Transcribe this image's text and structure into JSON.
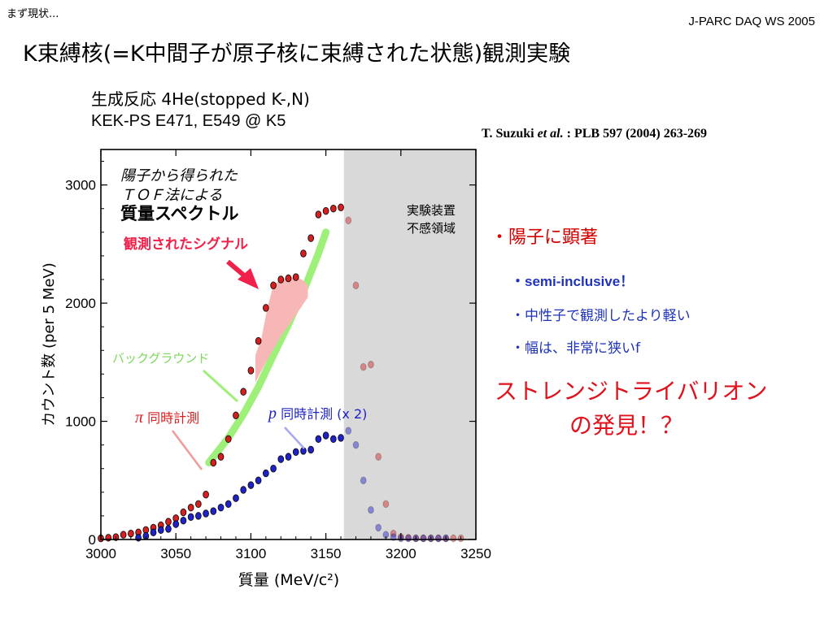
{
  "header": {
    "corner_label": "まず現状...",
    "event_label": "J-PARC DAQ WS 2005"
  },
  "slide": {
    "title": "K束縛核(=K中間子が原子核に束縛された状態)観測実験",
    "reaction": "生成反応  4He(stopped K-,N)",
    "experiment": "KEK-PS E471, E549 @ K5",
    "citation_author": "T. Suzuki ",
    "citation_etal": "et al.",
    "citation_ref": " : PLB 597 (2004) 263-269"
  },
  "bullets": {
    "b1": "・陽子に顕著",
    "b2": "・semi-inclusive！",
    "b3": "・中性子で観測したより軽い",
    "b4": "・幅は、非常に狭いf"
  },
  "conclusion": {
    "line1": "ストレンジトライバリオン",
    "line2": "の発見！？"
  },
  "colors": {
    "pi_series": "#d42020",
    "p_series": "#1f22c8",
    "background_band": "#9ef07a",
    "signal_fill": "#f7b7b7",
    "insensitive_region": "#d9d9d9",
    "arrow": "#f0204a"
  },
  "chart_data": {
    "type": "scatter",
    "xlabel": "質量 (MeV/c²)",
    "ylabel": "カウント数 (per 5 MeV)",
    "xlim": [
      3000,
      3250
    ],
    "ylim": [
      0,
      3300
    ],
    "xticks": [
      3000,
      3050,
      3100,
      3150,
      3200,
      3250
    ],
    "yticks": [
      0,
      1000,
      2000,
      3000
    ],
    "inner_title": [
      "陽子から得られた",
      "ＴＯＦ法による",
      "質量スペクトル"
    ],
    "insensitive_region": {
      "label": [
        "実験装置",
        "不感領域"
      ],
      "x_range": [
        3162,
        3250
      ]
    },
    "annotations": {
      "signal": "観測されたシグナル",
      "background": "バックグラウンド",
      "pi_label_symbol": "π",
      "pi_label_text": " 同時計測",
      "p_label_symbol": "p",
      "p_label_text": " 同時計測 (x 2)"
    },
    "series": [
      {
        "name": "π 同時計測",
        "x": [
          3000,
          3005,
          3010,
          3015,
          3020,
          3025,
          3030,
          3035,
          3040,
          3045,
          3050,
          3055,
          3060,
          3065,
          3070,
          3075,
          3080,
          3085,
          3090,
          3095,
          3100,
          3105,
          3110,
          3115,
          3120,
          3125,
          3130,
          3135,
          3140,
          3145,
          3150,
          3155,
          3160,
          3165,
          3170,
          3175,
          3180,
          3185,
          3190,
          3195,
          3200,
          3205,
          3210,
          3215,
          3220,
          3225,
          3230,
          3235,
          3240
        ],
        "y": [
          10,
          15,
          20,
          40,
          50,
          60,
          80,
          100,
          120,
          150,
          180,
          230,
          270,
          300,
          380,
          650,
          700,
          850,
          1050,
          1250,
          1430,
          1680,
          1960,
          2150,
          2200,
          2210,
          2220,
          2420,
          2550,
          2750,
          2780,
          2800,
          2810,
          2700,
          2150,
          1460,
          1480,
          700,
          300,
          50,
          20,
          15,
          10,
          10,
          10,
          10,
          10,
          10,
          10
        ]
      },
      {
        "name": "p 同時計測 (x 2)",
        "x": [
          3025,
          3030,
          3035,
          3040,
          3045,
          3050,
          3055,
          3060,
          3065,
          3070,
          3075,
          3080,
          3085,
          3090,
          3095,
          3100,
          3105,
          3110,
          3115,
          3120,
          3125,
          3130,
          3135,
          3140,
          3145,
          3150,
          3155,
          3160,
          3165,
          3170,
          3175,
          3180,
          3185,
          3190,
          3195,
          3200,
          3205,
          3210,
          3215,
          3220,
          3225,
          3230
        ],
        "y": [
          15,
          30,
          60,
          80,
          90,
          130,
          160,
          190,
          200,
          220,
          240,
          270,
          300,
          350,
          420,
          460,
          500,
          560,
          600,
          680,
          700,
          740,
          750,
          760,
          850,
          880,
          850,
          860,
          920,
          800,
          500,
          250,
          100,
          40,
          20,
          10,
          10,
          10,
          10,
          10,
          10,
          10
        ]
      }
    ]
  }
}
